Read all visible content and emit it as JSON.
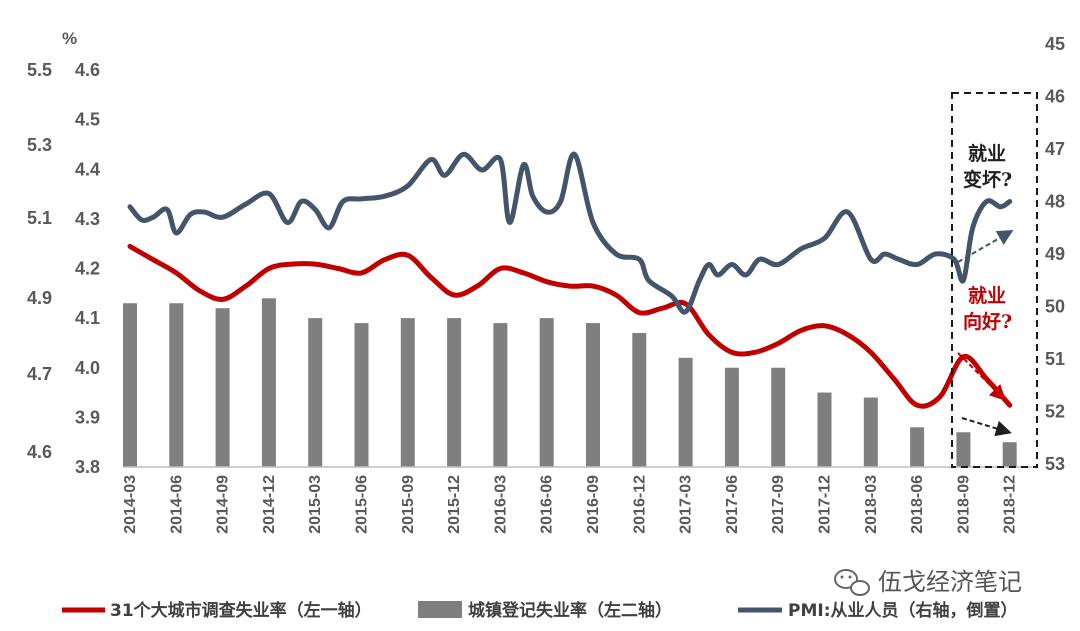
{
  "chart_data": {
    "type": "bar+line",
    "categories": [
      "2014-03",
      "2014-06",
      "2014-09",
      "2014-12",
      "2015-03",
      "2015-06",
      "2015-09",
      "2015-12",
      "2016-03",
      "2016-06",
      "2016-09",
      "2016-12",
      "2017-03",
      "2017-06",
      "2017-09",
      "2017-12",
      "2018-03",
      "2018-06",
      "2018-09",
      "2018-12"
    ],
    "unit_label": "%",
    "axes": {
      "left1": {
        "ticks": [
          "5.5",
          "5.3",
          "5.1",
          "4.9",
          "4.7",
          "4.6"
        ],
        "tick_values": [
          5.5,
          5.3,
          5.1,
          4.9,
          4.7,
          4.6
        ],
        "range": [
          4.6,
          5.5
        ]
      },
      "left2": {
        "ticks": [
          "4.6",
          "4.5",
          "4.4",
          "4.3",
          "4.2",
          "4.1",
          "4.0",
          "3.9",
          "3.8"
        ],
        "range": [
          3.8,
          4.6
        ]
      },
      "right": {
        "ticks": [
          "45",
          "46",
          "47",
          "48",
          "49",
          "50",
          "51",
          "52",
          "53"
        ],
        "range": [
          45,
          53
        ],
        "inverted": true
      }
    },
    "series": [
      {
        "name": "31个大城市调查失业率（左一轴）",
        "kind": "line",
        "axis": "left1",
        "color": "#c00000",
        "points": [
          [
            0,
            5.1
          ],
          [
            0.5,
            5.07
          ],
          [
            1,
            5.04
          ],
          [
            1.5,
            5.0
          ],
          [
            2,
            4.98
          ],
          [
            2.5,
            5.01
          ],
          [
            3,
            5.05
          ],
          [
            3.5,
            5.06
          ],
          [
            4,
            5.06
          ],
          [
            4.5,
            5.05
          ],
          [
            5,
            5.04
          ],
          [
            5.5,
            5.07
          ],
          [
            6,
            5.08
          ],
          [
            6.5,
            5.03
          ],
          [
            7,
            4.99
          ],
          [
            7.5,
            5.01
          ],
          [
            8,
            5.05
          ],
          [
            8.5,
            5.04
          ],
          [
            9,
            5.02
          ],
          [
            9.5,
            5.01
          ],
          [
            10,
            5.01
          ],
          [
            10.5,
            4.99
          ],
          [
            11,
            4.95
          ],
          [
            11.5,
            4.96
          ],
          [
            12,
            4.97
          ],
          [
            12.5,
            4.9
          ],
          [
            13,
            4.86
          ],
          [
            13.5,
            4.86
          ],
          [
            14,
            4.88
          ],
          [
            14.5,
            4.91
          ],
          [
            15,
            4.92
          ],
          [
            15.5,
            4.9
          ],
          [
            16,
            4.86
          ],
          [
            16.5,
            4.8
          ],
          [
            17,
            4.74
          ],
          [
            17.5,
            4.76
          ],
          [
            18,
            4.85
          ],
          [
            18.5,
            4.8
          ],
          [
            19,
            4.74
          ]
        ]
      },
      {
        "name": "城镇登记失业率（左二轴）",
        "kind": "bar",
        "axis": "left2",
        "color": "#7f7f7f",
        "values": [
          4.13,
          4.13,
          4.12,
          4.14,
          4.1,
          4.09,
          4.1,
          4.1,
          4.09,
          4.1,
          4.09,
          4.07,
          4.02,
          4.0,
          4.0,
          3.95,
          3.94,
          3.88,
          3.87,
          3.85
        ]
      },
      {
        "name": "PMI:从业人员（右轴，倒置）",
        "kind": "line",
        "axis": "right",
        "color": "#44546a",
        "points": [
          [
            0,
            48.1
          ],
          [
            0.25,
            48.35
          ],
          [
            0.5,
            48.3
          ],
          [
            0.8,
            48.15
          ],
          [
            1,
            48.6
          ],
          [
            1.3,
            48.25
          ],
          [
            1.6,
            48.2
          ],
          [
            2,
            48.3
          ],
          [
            2.5,
            48.05
          ],
          [
            3,
            47.85
          ],
          [
            3.4,
            48.4
          ],
          [
            3.7,
            48.0
          ],
          [
            4,
            48.15
          ],
          [
            4.3,
            48.5
          ],
          [
            4.6,
            48.0
          ],
          [
            5,
            47.95
          ],
          [
            5.5,
            47.9
          ],
          [
            6,
            47.7
          ],
          [
            6.5,
            47.2
          ],
          [
            6.8,
            47.5
          ],
          [
            7.2,
            47.1
          ],
          [
            7.6,
            47.4
          ],
          [
            8,
            47.2
          ],
          [
            8.2,
            48.4
          ],
          [
            8.5,
            47.3
          ],
          [
            8.7,
            47.9
          ],
          [
            9,
            48.2
          ],
          [
            9.3,
            48.0
          ],
          [
            9.6,
            47.1
          ],
          [
            10,
            48.4
          ],
          [
            10.5,
            49.0
          ],
          [
            11,
            49.1
          ],
          [
            11.2,
            49.5
          ],
          [
            11.7,
            49.8
          ],
          [
            12,
            50.1
          ],
          [
            12.3,
            49.5
          ],
          [
            12.5,
            49.2
          ],
          [
            12.7,
            49.4
          ],
          [
            13,
            49.2
          ],
          [
            13.3,
            49.4
          ],
          [
            13.6,
            49.1
          ],
          [
            14,
            49.2
          ],
          [
            14.5,
            48.9
          ],
          [
            15,
            48.7
          ],
          [
            15.5,
            48.2
          ],
          [
            16,
            49.1
          ],
          [
            16.3,
            49.0
          ],
          [
            16.6,
            49.1
          ],
          [
            17,
            49.2
          ],
          [
            17.4,
            49.0
          ],
          [
            17.8,
            49.1
          ],
          [
            18,
            49.5
          ],
          [
            18.2,
            48.5
          ],
          [
            18.5,
            48.0
          ],
          [
            18.8,
            48.1
          ],
          [
            19,
            48.0
          ]
        ]
      }
    ]
  },
  "annotations": {
    "worse_line1": "就业",
    "worse_line2": "变坏?",
    "better_line1": "就业",
    "better_line2": "向好?"
  },
  "legend": {
    "item1": "31个大城市调查失业率（左一轴）",
    "item2": "城镇登记失业率（左二轴）",
    "item3": "PMI:从业人员（右轴，倒置）"
  },
  "watermark": {
    "text": "伍戈经济笔记",
    "icon": "wechat-icon"
  },
  "colors": {
    "red": "#c00000",
    "gray_bar": "#7f7f7f",
    "navy": "#44546a",
    "annotation_black": "#1f1f1f",
    "annotation_red": "#c00000",
    "arrow_blue": "#44546a",
    "arrow_red": "#c00000",
    "arrow_black": "#1f1f1f"
  }
}
